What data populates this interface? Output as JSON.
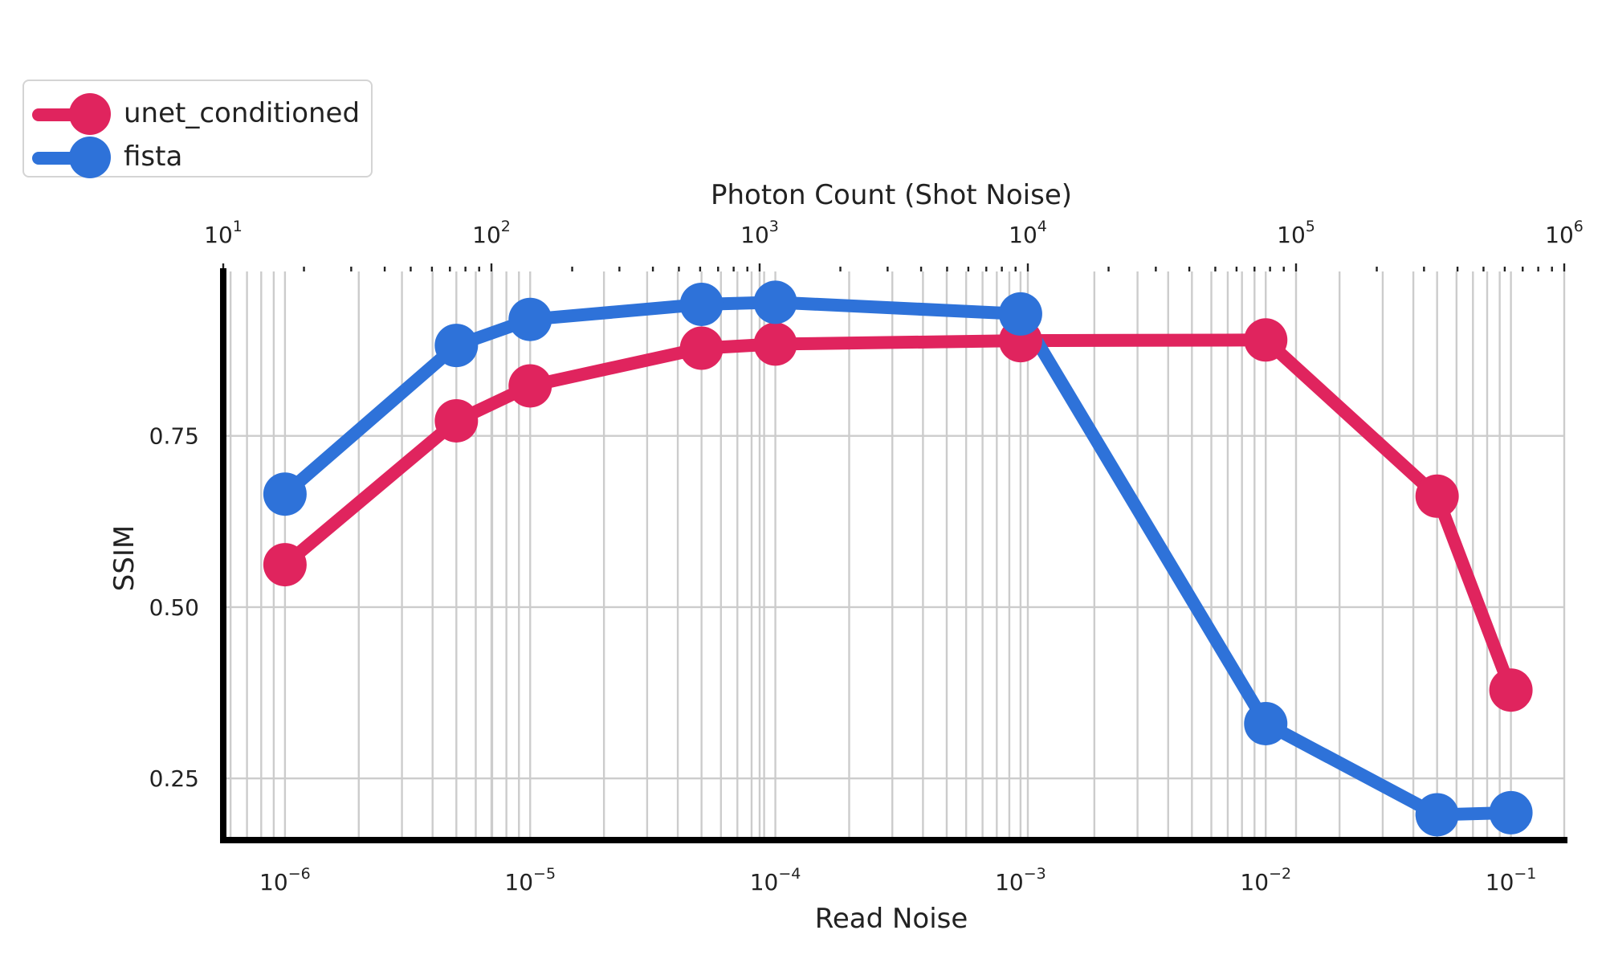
{
  "chart_data": {
    "type": "line",
    "ylabel": "SSIM",
    "xlabel": "Read Noise",
    "top_xlabel": "Photon Count (Shot Noise)",
    "xscale": "log",
    "xlim": [
      5.6e-07,
      0.165
    ],
    "top_xlim": [
      10,
      1000000
    ],
    "ylim": [
      0.16,
      0.99
    ],
    "yticks": [
      0.25,
      0.5,
      0.75
    ],
    "ytick_labels": [
      "0.25",
      "0.50",
      "0.75"
    ],
    "xticks": [
      1e-06,
      1e-05,
      0.0001,
      0.001,
      0.01,
      0.1
    ],
    "xtick_labels": [
      {
        "base": "10",
        "exp": "−6"
      },
      {
        "base": "10",
        "exp": "−5"
      },
      {
        "base": "10",
        "exp": "−4"
      },
      {
        "base": "10",
        "exp": "−3"
      },
      {
        "base": "10",
        "exp": "−2"
      },
      {
        "base": "10",
        "exp": "−1"
      }
    ],
    "top_xticks": [
      10,
      100,
      1000,
      10000,
      100000,
      1000000
    ],
    "top_xtick_labels": [
      {
        "base": "10",
        "exp": "1"
      },
      {
        "base": "10",
        "exp": "2"
      },
      {
        "base": "10",
        "exp": "3"
      },
      {
        "base": "10",
        "exp": "4"
      },
      {
        "base": "10",
        "exp": "5"
      },
      {
        "base": "10",
        "exp": "6"
      }
    ],
    "grid": true,
    "legend_position": "top-left (outside)",
    "x": [
      1e-06,
      5e-06,
      1e-05,
      5e-05,
      0.0001,
      0.001,
      0.01,
      0.05,
      0.1
    ],
    "series": [
      {
        "name": "unet_conditioned",
        "color": "#e0245e",
        "values": [
          0.562,
          0.772,
          0.823,
          0.878,
          0.884,
          0.889,
          0.89,
          0.662,
          0.379
        ]
      },
      {
        "name": "fista",
        "color": "#2e72d9",
        "values": [
          0.665,
          0.882,
          0.92,
          0.942,
          0.945,
          0.928,
          0.33,
          0.197,
          0.2
        ]
      }
    ]
  }
}
